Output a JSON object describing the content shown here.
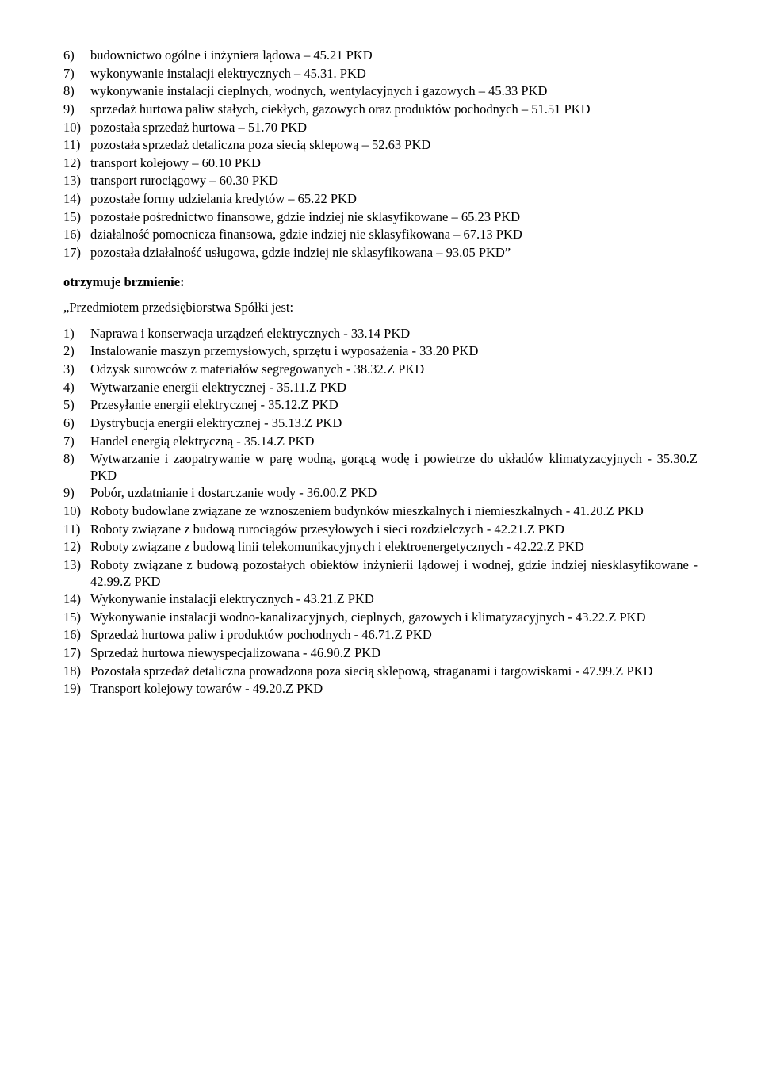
{
  "doc": {
    "background": "#ffffff",
    "text_color": "#000000",
    "font_family": "Times New Roman",
    "font_size_pt": 12,
    "line_height": 1.25
  },
  "list_top": {
    "start": 6,
    "items": [
      "budownictwo ogólne i inżyniera lądowa – 45.21 PKD",
      "wykonywanie instalacji elektrycznych – 45.31. PKD",
      "wykonywanie instalacji cieplnych, wodnych, wentylacyjnych i gazowych – 45.33 PKD",
      "sprzedaż hurtowa paliw stałych, ciekłych, gazowych oraz produktów pochodnych – 51.51 PKD",
      "pozostała sprzedaż hurtowa – 51.70 PKD",
      "pozostała sprzedaż detaliczna poza siecią sklepową – 52.63 PKD",
      "transport kolejowy – 60.10 PKD",
      "transport rurociągowy – 60.30 PKD",
      "pozostałe formy udzielania kredytów – 65.22 PKD",
      "pozostałe pośrednictwo finansowe, gdzie indziej nie sklasyfikowane – 65.23 PKD",
      "działalność pomocnicza finansowa, gdzie indziej nie sklasyfikowana – 67.13 PKD",
      "pozostała działalność usługowa, gdzie indziej nie sklasyfikowana – 93.05 PKD”"
    ]
  },
  "mid": {
    "receives_wording": "otrzymuje brzmienie:",
    "quote_intro": "„Przedmiotem przedsiębiorstwa Spółki jest:"
  },
  "list_bottom": {
    "start": 1,
    "items": [
      "Naprawa i konserwacja urządzeń elektrycznych - 33.14 PKD",
      "Instalowanie maszyn przemysłowych, sprzętu i wyposażenia - 33.20 PKD",
      "Odzysk surowców z materiałów segregowanych - 38.32.Z PKD",
      "Wytwarzanie energii elektrycznej - 35.11.Z PKD",
      "Przesyłanie energii elektrycznej - 35.12.Z PKD",
      "Dystrybucja energii elektrycznej - 35.13.Z PKD",
      "Handel energią elektryczną - 35.14.Z PKD",
      "Wytwarzanie i zaopatrywanie w parę wodną, gorącą wodę i powietrze do układów klimatyzacyjnych - 35.30.Z PKD",
      "Pobór, uzdatnianie i dostarczanie wody - 36.00.Z PKD",
      "Roboty budowlane związane ze wznoszeniem budynków mieszkalnych i niemieszkalnych - 41.20.Z PKD",
      "Roboty związane z budową rurociągów przesyłowych i sieci rozdzielczych - 42.21.Z PKD",
      "Roboty związane z budową linii telekomunikacyjnych i elektroenergetycznych - 42.22.Z PKD",
      "Roboty związane z budową pozostałych obiektów inżynierii lądowej i wodnej, gdzie indziej niesklasyfikowane - 42.99.Z PKD",
      "Wykonywanie instalacji elektrycznych - 43.21.Z PKD",
      "Wykonywanie instalacji wodno-kanalizacyjnych, cieplnych, gazowych i klimatyzacyjnych - 43.22.Z PKD",
      "Sprzedaż hurtowa paliw i produktów pochodnych - 46.71.Z PKD",
      "Sprzedaż hurtowa niewyspecjalizowana - 46.90.Z PKD",
      "Pozostała sprzedaż detaliczna prowadzona poza siecią sklepową, straganami i targowiskami - 47.99.Z PKD",
      "Transport kolejowy towarów - 49.20.Z PKD"
    ]
  }
}
